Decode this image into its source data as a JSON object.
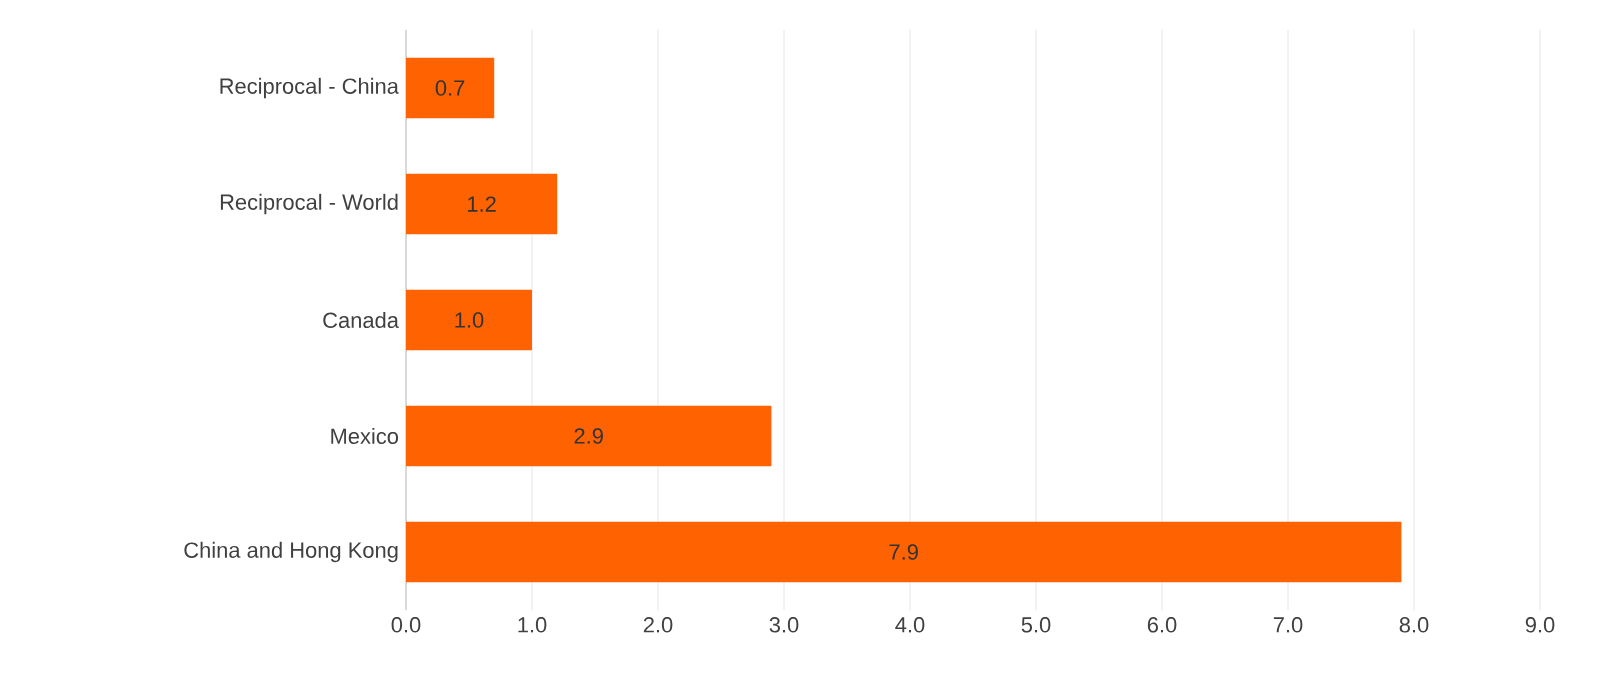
{
  "chart_data": {
    "type": "bar",
    "orientation": "horizontal",
    "categories": [
      "Reciprocal - China",
      "Reciprocal - World",
      "Canada",
      "Mexico",
      "China and Hong Kong"
    ],
    "values": [
      0.7,
      1.2,
      1.0,
      2.9,
      7.9
    ],
    "value_labels": [
      "0.7",
      "1.2",
      "1.0",
      "2.9",
      "7.9"
    ],
    "color": "#ff6200",
    "xlim": [
      0,
      9
    ],
    "xticks": [
      {
        "value": 0,
        "label": "0.0"
      },
      {
        "value": 1,
        "label": "1.0"
      },
      {
        "value": 2,
        "label": "2.0"
      },
      {
        "value": 3,
        "label": "3.0"
      },
      {
        "value": 4,
        "label": "4.0"
      },
      {
        "value": 5,
        "label": "5.0"
      },
      {
        "value": 6,
        "label": "6.0"
      },
      {
        "value": 7,
        "label": "7.0"
      },
      {
        "value": 8,
        "label": "8.0"
      },
      {
        "value": 9,
        "label": "9.0"
      }
    ],
    "grid": "x"
  }
}
